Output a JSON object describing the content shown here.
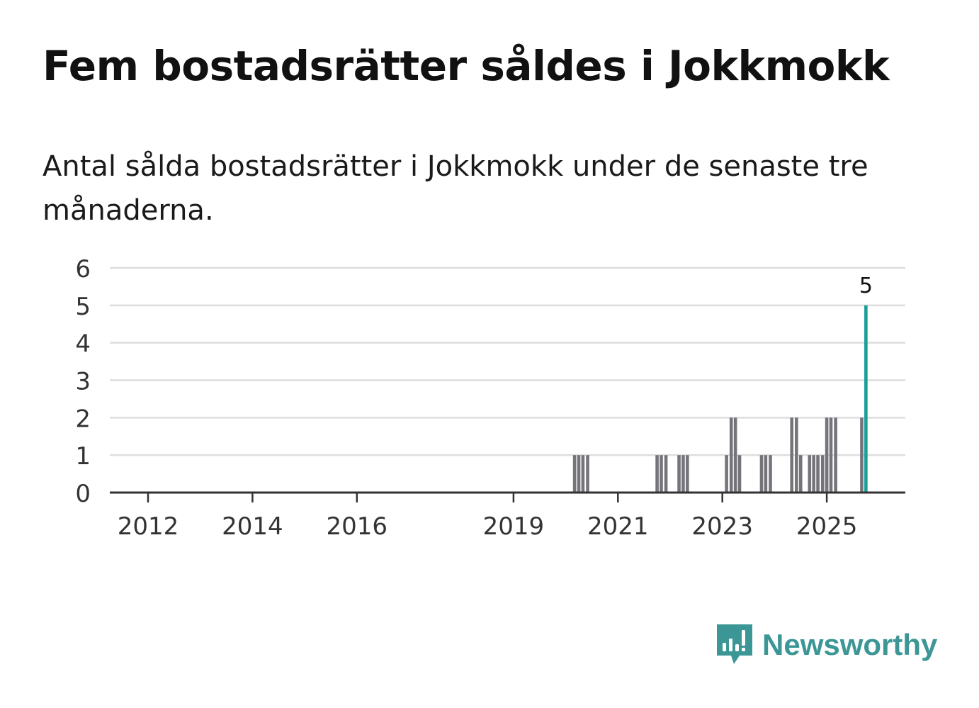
{
  "header": {
    "title": "Fem bostadsrätter såldes i Jokkmokk",
    "subtitle": "Antal sålda bostadsrätter i Jokkmokk under de senaste tre månaderna."
  },
  "brand": {
    "name": "Newsworthy",
    "icon": "newsworthy-logo-icon",
    "color": "#3d9696"
  },
  "chart_data": {
    "type": "bar",
    "title": "Fem bostadsrätter såldes i Jokkmokk",
    "subtitle": "Antal sålda bostadsrätter i Jokkmokk under de senaste tre månaderna.",
    "xlabel": "",
    "ylabel": "",
    "ylim": [
      0,
      6
    ],
    "xlim": [
      2011.3,
      2026.5
    ],
    "yticks": [
      0,
      1,
      2,
      3,
      4,
      5,
      6
    ],
    "xticks": [
      {
        "label": "2012",
        "value": 2012
      },
      {
        "label": "2014",
        "value": 2014
      },
      {
        "label": "2016",
        "value": 2016
      },
      {
        "label": "2019",
        "value": 2019
      },
      {
        "label": "2021",
        "value": 2021
      },
      {
        "label": "2023",
        "value": 2023
      },
      {
        "label": "2025",
        "value": 2025
      }
    ],
    "grid": true,
    "colors": {
      "bar": "#75747b",
      "highlight": "#1b9e97",
      "grid": "#dddddd",
      "axis": "#333333",
      "tick_text": "#333333"
    },
    "series": [
      {
        "name": "Sålda bostadsrätter",
        "points": [
          {
            "x": 2020.17,
            "y": 1
          },
          {
            "x": 2020.25,
            "y": 1
          },
          {
            "x": 2020.33,
            "y": 1
          },
          {
            "x": 2020.42,
            "y": 1
          },
          {
            "x": 2021.75,
            "y": 1
          },
          {
            "x": 2021.83,
            "y": 1
          },
          {
            "x": 2021.92,
            "y": 1
          },
          {
            "x": 2022.17,
            "y": 1
          },
          {
            "x": 2022.25,
            "y": 1
          },
          {
            "x": 2022.33,
            "y": 1
          },
          {
            "x": 2023.08,
            "y": 1
          },
          {
            "x": 2023.17,
            "y": 2
          },
          {
            "x": 2023.25,
            "y": 2
          },
          {
            "x": 2023.33,
            "y": 1
          },
          {
            "x": 2023.75,
            "y": 1
          },
          {
            "x": 2023.83,
            "y": 1
          },
          {
            "x": 2023.92,
            "y": 1
          },
          {
            "x": 2024.33,
            "y": 2
          },
          {
            "x": 2024.42,
            "y": 2
          },
          {
            "x": 2024.5,
            "y": 1
          },
          {
            "x": 2024.67,
            "y": 1
          },
          {
            "x": 2024.75,
            "y": 1
          },
          {
            "x": 2024.83,
            "y": 1
          },
          {
            "x": 2024.92,
            "y": 1
          },
          {
            "x": 2025.0,
            "y": 2
          },
          {
            "x": 2025.08,
            "y": 2
          },
          {
            "x": 2025.17,
            "y": 2
          },
          {
            "x": 2025.67,
            "y": 2
          },
          {
            "x": 2025.75,
            "y": 5,
            "highlight": true,
            "label": "5"
          }
        ]
      }
    ]
  }
}
